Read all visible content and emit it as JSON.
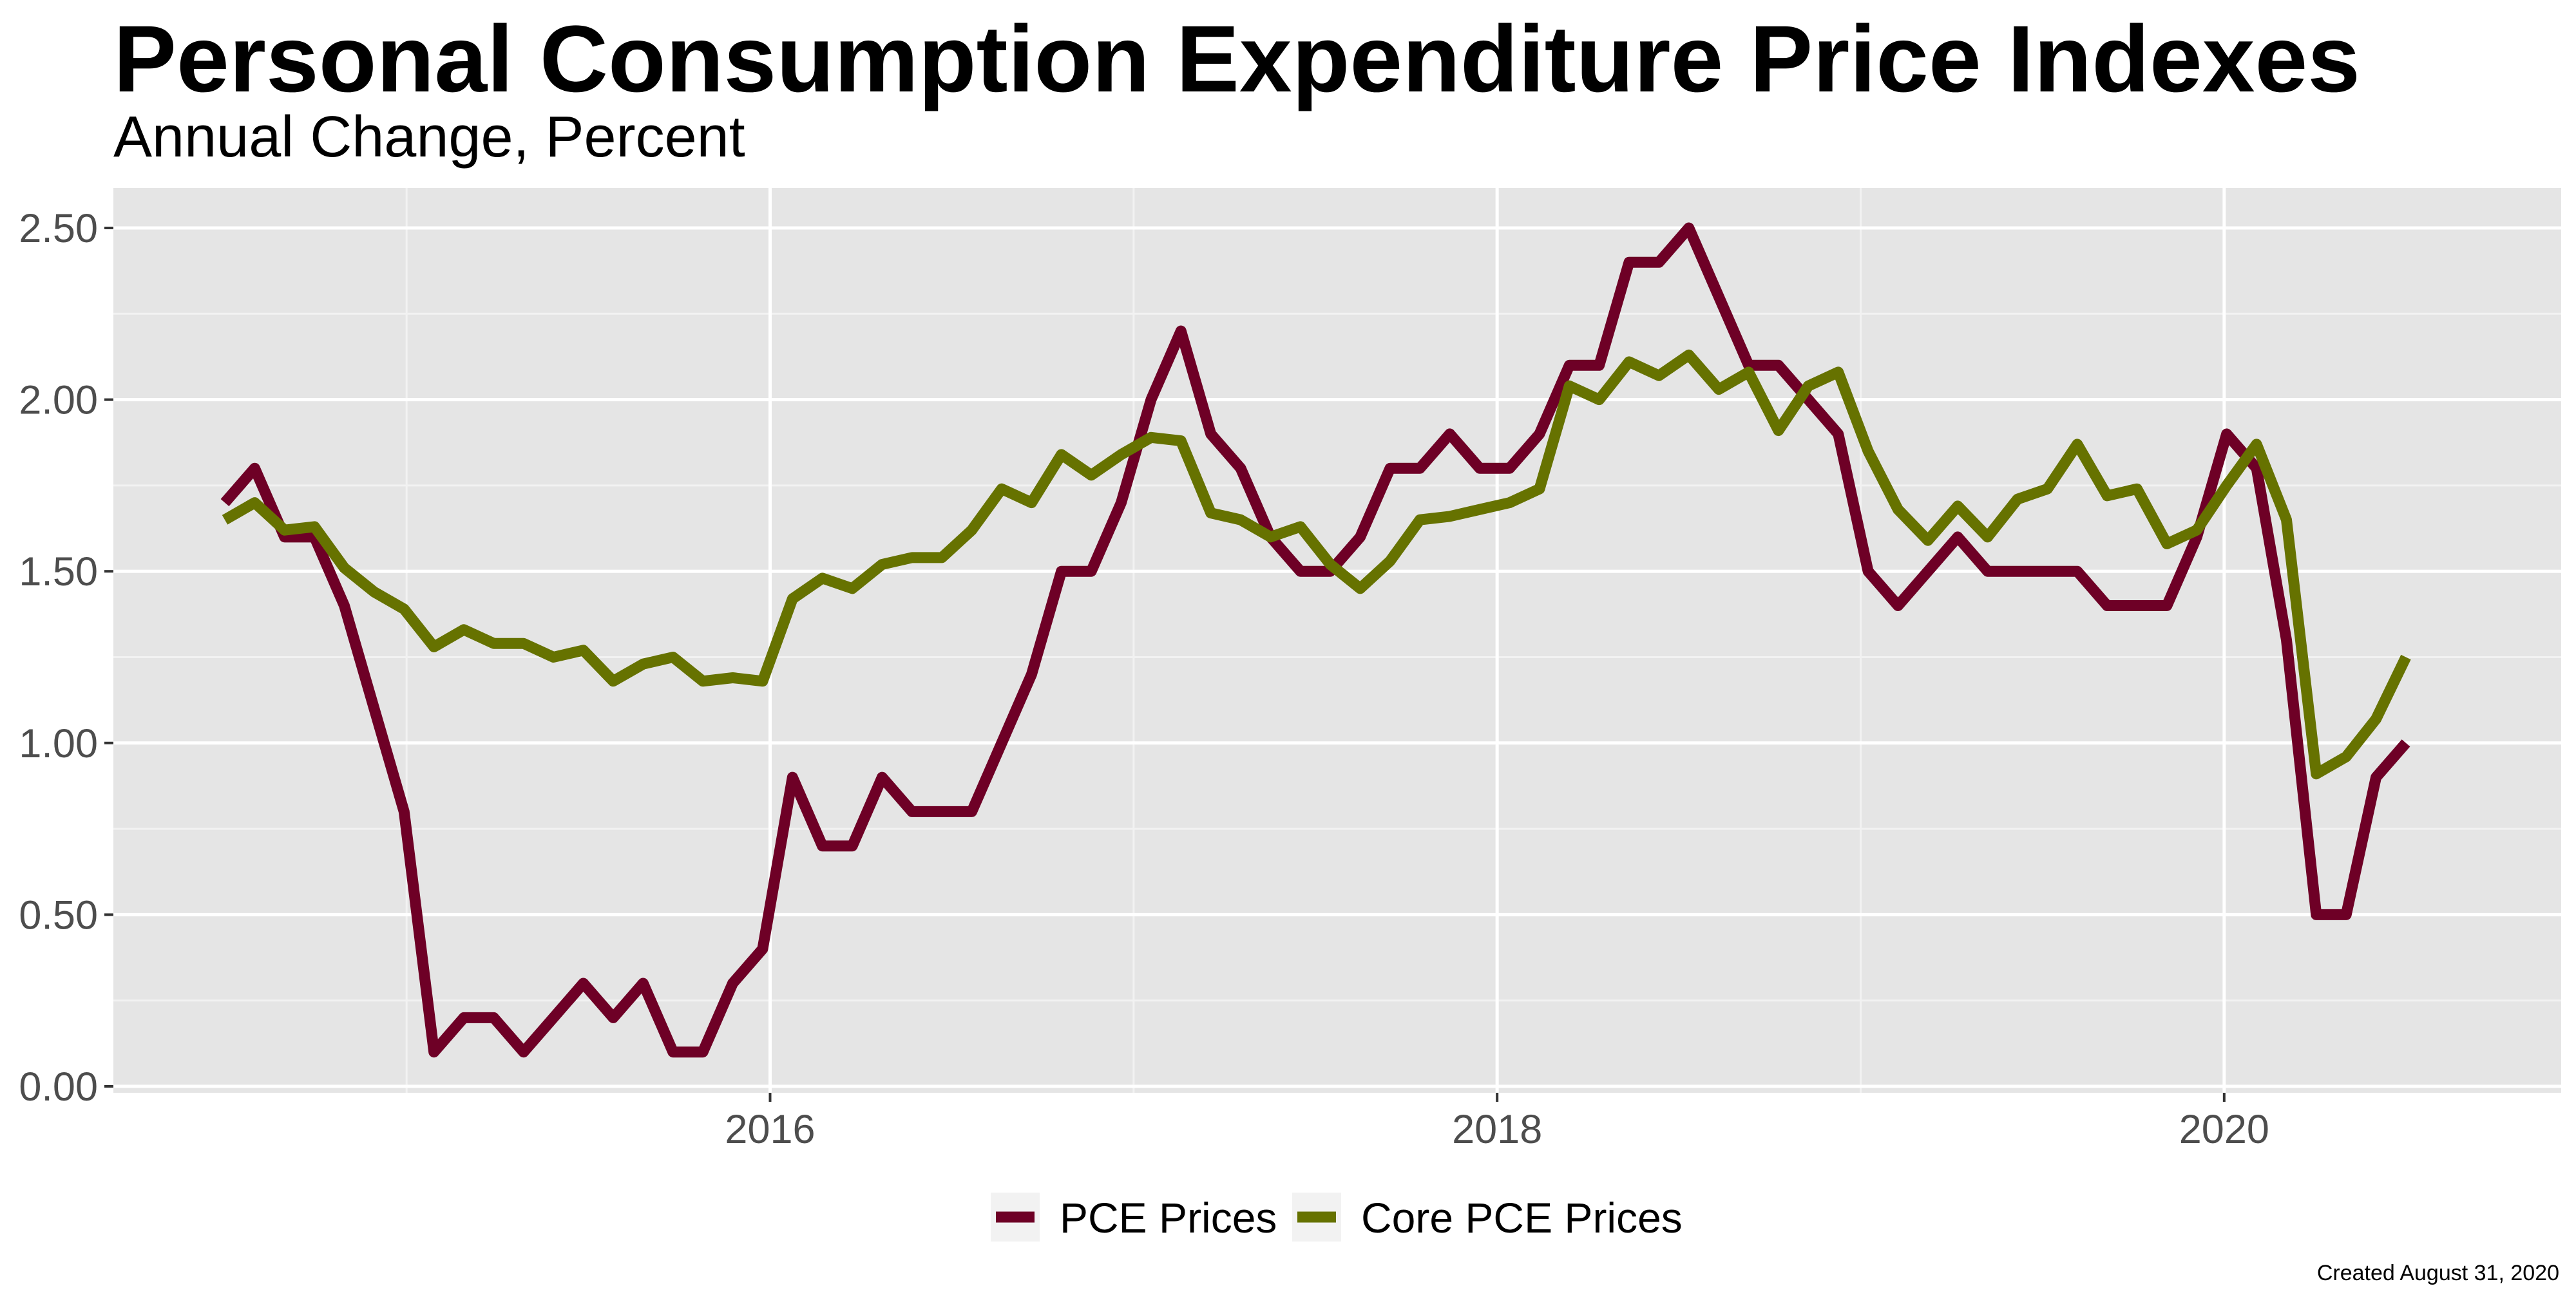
{
  "chart_data": {
    "type": "line",
    "title": "Personal Consumption Expenditure Price Indexes",
    "subtitle": "Annual Change, Percent",
    "xlabel": "",
    "ylabel": "",
    "x_start": "2014-07",
    "x_end": "2020-07",
    "x_ticks": [
      "2016",
      "2018",
      "2020"
    ],
    "y_ticks": [
      "0.00",
      "0.50",
      "1.00",
      "1.50",
      "2.00",
      "2.50"
    ],
    "ylim": [
      0,
      2.5
    ],
    "grid": true,
    "legend_position": "bottom",
    "series": [
      {
        "name": "PCE Prices",
        "color": "#6e0026",
        "values": [
          1.7,
          1.8,
          1.6,
          1.6,
          1.4,
          1.1,
          0.8,
          0.1,
          0.2,
          0.2,
          0.1,
          0.2,
          0.3,
          0.2,
          0.3,
          0.1,
          0.1,
          0.3,
          0.4,
          0.9,
          0.7,
          0.7,
          0.9,
          0.8,
          0.8,
          0.8,
          1.0,
          1.2,
          1.5,
          1.5,
          1.7,
          2.0,
          2.2,
          1.9,
          1.8,
          1.6,
          1.5,
          1.5,
          1.6,
          1.8,
          1.8,
          1.9,
          1.8,
          1.8,
          1.9,
          2.1,
          2.1,
          2.4,
          2.4,
          2.5,
          2.3,
          2.1,
          2.1,
          2.0,
          1.9,
          1.5,
          1.4,
          1.5,
          1.6,
          1.5,
          1.5,
          1.5,
          1.5,
          1.4,
          1.4,
          1.4,
          1.6,
          1.9,
          1.8,
          1.3,
          0.5,
          0.5,
          0.9,
          1.0
        ]
      },
      {
        "name": "Core PCE Prices",
        "color": "#667200",
        "values": [
          1.65,
          1.7,
          1.62,
          1.63,
          1.51,
          1.44,
          1.39,
          1.28,
          1.33,
          1.29,
          1.29,
          1.25,
          1.27,
          1.18,
          1.23,
          1.25,
          1.18,
          1.19,
          1.18,
          1.42,
          1.48,
          1.45,
          1.52,
          1.54,
          1.54,
          1.62,
          1.74,
          1.7,
          1.84,
          1.78,
          1.84,
          1.89,
          1.88,
          1.67,
          1.65,
          1.6,
          1.63,
          1.52,
          1.45,
          1.53,
          1.65,
          1.66,
          1.68,
          1.7,
          1.74,
          2.04,
          2.0,
          2.11,
          2.07,
          2.13,
          2.03,
          2.08,
          1.91,
          2.04,
          2.08,
          1.85,
          1.68,
          1.59,
          1.69,
          1.6,
          1.71,
          1.74,
          1.87,
          1.72,
          1.74,
          1.58,
          1.62,
          1.75,
          1.87,
          1.65,
          0.91,
          0.96,
          1.07,
          1.25
        ]
      }
    ]
  },
  "caption": "Created August 31, 2020"
}
